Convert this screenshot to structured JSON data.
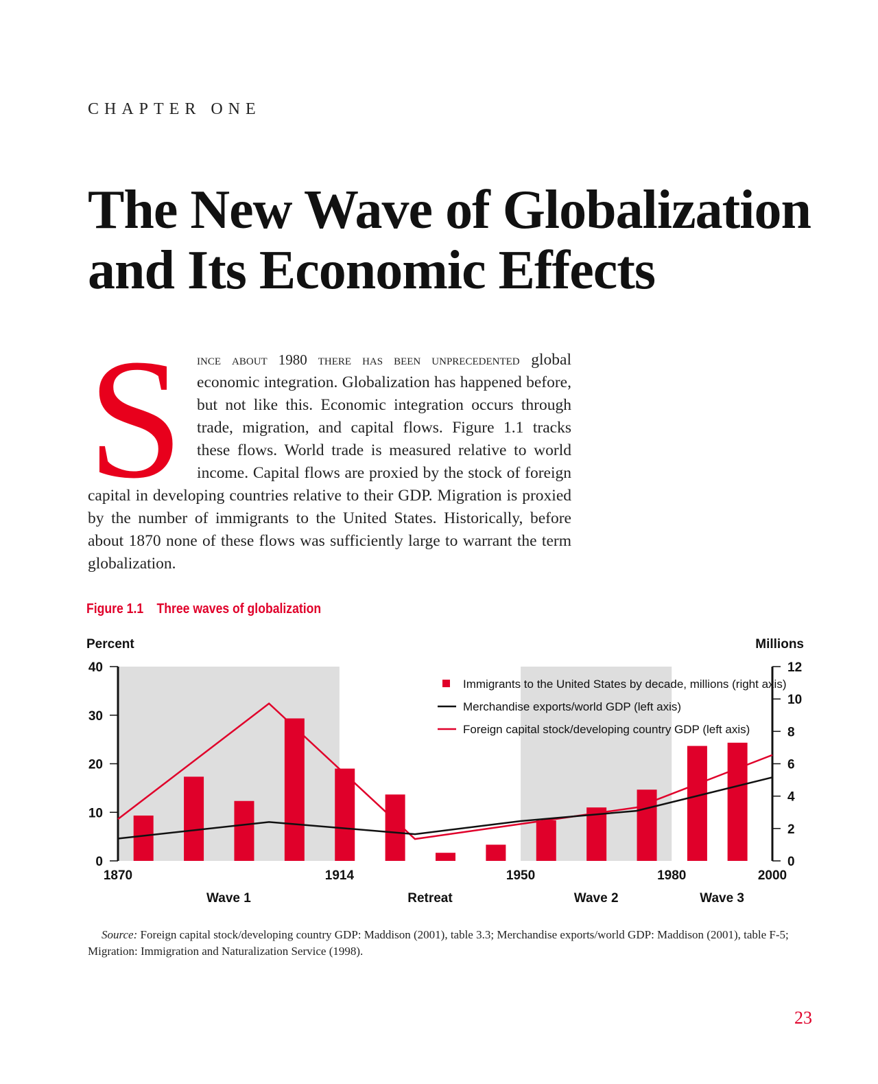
{
  "chapter_label": "CHAPTER ONE",
  "title_line1": "The New Wave of Globalization",
  "title_line2": "and Its Economic Effects",
  "body": {
    "drop_cap": "S",
    "lead_smallcaps": "ince about 1980 there has been unprecedented",
    "text": " global economic integration. Globalization has happened before, but not like this. Economic integration occurs through trade, migration, and capital flows. Figure 1.1 tracks these flows. World trade is measured relative to world income. Capital flows are proxied by the stock of foreign capital in developing countries relative to their GDP. Migration is proxied by the number of immigrants to the United States. Historically, before about 1870 none of these flows was sufficiently large to warrant the term globalization."
  },
  "figure": {
    "number": "Figure 1.1",
    "title": "Three waves of globalization"
  },
  "chart_data": {
    "type": "bar+line",
    "ylabel_left": "Percent",
    "ylabel_right": "Millions",
    "ylim_left": [
      0,
      40
    ],
    "ylim_right": [
      0,
      12
    ],
    "yticks_left": [
      "0",
      "10",
      "20",
      "30",
      "40"
    ],
    "yticks_right": [
      "0",
      "2",
      "4",
      "6",
      "8",
      "10",
      "12"
    ],
    "xlim": [
      1870,
      2000
    ],
    "xticks": [
      "1870",
      "1914",
      "1950",
      "1980",
      "2000"
    ],
    "shaded_periods": [
      [
        1870,
        1914
      ],
      [
        1950,
        1980
      ]
    ],
    "period_labels": [
      {
        "label": "Wave 1",
        "x": 1892
      },
      {
        "label": "Retreat",
        "x": 1932
      },
      {
        "label": "Wave 2",
        "x": 1965
      },
      {
        "label": "Wave 3",
        "x": 1990
      }
    ],
    "bars": {
      "name": "Immigrants to the United States by decade, millions (right axis)",
      "color": "#e0002a",
      "x": [
        1875,
        1885,
        1895,
        1905,
        1915,
        1925,
        1935,
        1945,
        1955,
        1965,
        1975,
        1985,
        1993
      ],
      "values": [
        2.8,
        5.2,
        3.7,
        8.8,
        5.7,
        4.1,
        0.5,
        1.0,
        2.5,
        3.3,
        4.4,
        7.1,
        7.3
      ]
    },
    "series": [
      {
        "name": "Merchandise exports/world GDP (left axis)",
        "color": "#111111",
        "x": [
          1870,
          1900,
          1929,
          1950,
          1973,
          2000
        ],
        "values": [
          4.6,
          8.0,
          5.5,
          8.2,
          10.3,
          17.2
        ]
      },
      {
        "name": "Foreign capital stock/developing country GDP  (left axis)",
        "color": "#e0002a",
        "x": [
          1870,
          1900,
          1929,
          1950,
          1973,
          2000
        ],
        "values": [
          8.6,
          32.4,
          4.5,
          7.6,
          11.0,
          21.8
        ]
      }
    ]
  },
  "source": {
    "label": "Source:",
    "text": " Foreign capital stock/developing country GDP: Maddison (2001), table 3.3; Merchandise exports/world GDP: Maddison (2001), table F-5; Migration: Immigration and Naturalization Service (1998)."
  },
  "page_number": "23"
}
